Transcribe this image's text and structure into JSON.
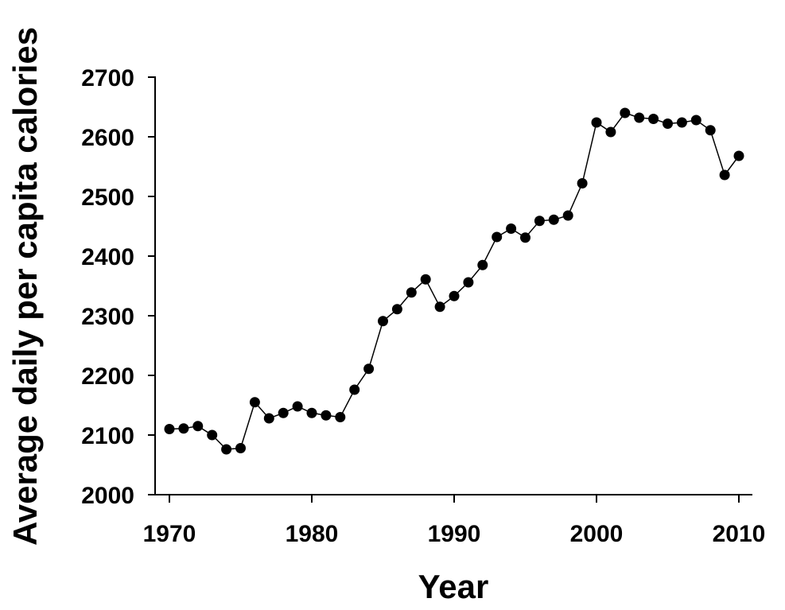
{
  "chart_data": {
    "type": "line",
    "title": "",
    "xlabel": "Year",
    "ylabel": "Average daily per capita calories",
    "xlim": [
      1970,
      2010
    ],
    "ylim": [
      2000,
      2700
    ],
    "x_ticks": [
      1970,
      1980,
      1990,
      2000,
      2010
    ],
    "y_ticks": [
      2000,
      2100,
      2200,
      2300,
      2400,
      2500,
      2600,
      2700
    ],
    "grid": false,
    "legend": "none",
    "colors": {
      "line": "#000000",
      "marker": "#000000"
    },
    "x": [
      1970,
      1971,
      1972,
      1973,
      1974,
      1975,
      1976,
      1977,
      1978,
      1979,
      1980,
      1981,
      1982,
      1983,
      1984,
      1985,
      1986,
      1987,
      1988,
      1989,
      1990,
      1991,
      1992,
      1993,
      1994,
      1995,
      1996,
      1997,
      1998,
      1999,
      2000,
      2001,
      2002,
      2003,
      2004,
      2005,
      2006,
      2007,
      2008,
      2009,
      2010
    ],
    "y": [
      2110,
      2111,
      2115,
      2100,
      2076,
      2078,
      2155,
      2128,
      2137,
      2148,
      2137,
      2133,
      2130,
      2176,
      2211,
      2291,
      2311,
      2339,
      2361,
      2315,
      2333,
      2356,
      2385,
      2432,
      2446,
      2431,
      2459,
      2461,
      2468,
      2522,
      2624,
      2608,
      2640,
      2632,
      2630,
      2622,
      2624,
      2628,
      2611,
      2536,
      2568
    ]
  }
}
